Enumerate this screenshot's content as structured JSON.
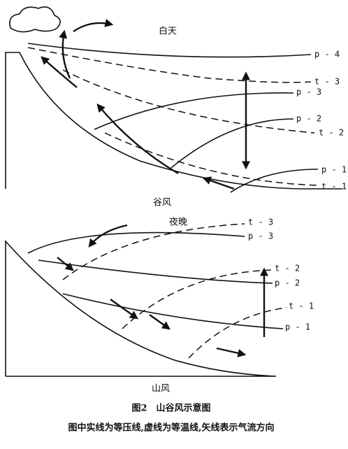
{
  "day": {
    "title": "白天",
    "labels": [
      "p - 4",
      "t - 3",
      "p - 3",
      "p - 2",
      "t - 2",
      "p - 1",
      "t - 1"
    ],
    "caption": "谷风"
  },
  "night": {
    "title": "夜晚",
    "labels": [
      "t - 3",
      "p - 3",
      "t - 2",
      "p - 2",
      "t - 1",
      "p - 1"
    ],
    "caption": "山风"
  },
  "figure": {
    "title": "图2　山谷风示意图",
    "note": "图中实线为等压线,虚线为等温线,矢线表示气流方向"
  }
}
